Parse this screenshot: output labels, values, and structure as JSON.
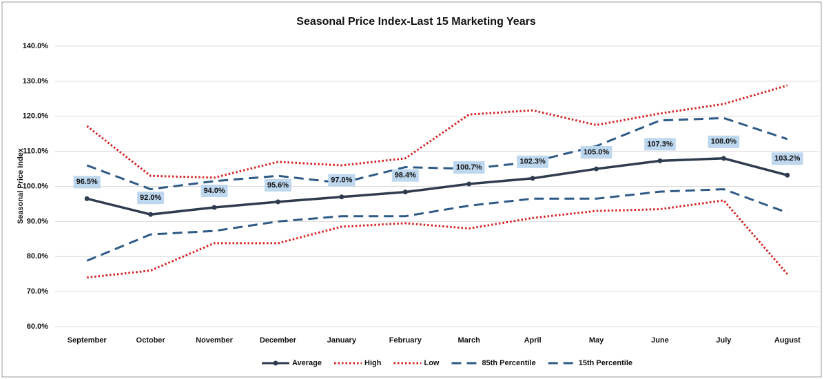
{
  "chart_data": {
    "type": "line",
    "title": "Seasonal Price Index-Last 15 Marketing Years",
    "y_label": "Seasonal Price Index",
    "categories": [
      "September",
      "October",
      "November",
      "December",
      "January",
      "February",
      "March",
      "April",
      "May",
      "June",
      "July",
      "August"
    ],
    "ylim": [
      60,
      140
    ],
    "yticks": [
      {
        "value": 60,
        "label": "60.0%"
      },
      {
        "value": 70,
        "label": "70.0%"
      },
      {
        "value": 80,
        "label": "80.0%"
      },
      {
        "value": 90,
        "label": "90.0%"
      },
      {
        "value": 100,
        "label": "100.0%"
      },
      {
        "value": 110,
        "label": "110.0%"
      },
      {
        "value": 120,
        "label": "120.0%"
      },
      {
        "value": 130,
        "label": "130.0%"
      },
      {
        "value": 140,
        "label": "140.0%"
      }
    ],
    "grid": true,
    "legend": "bottom",
    "series": [
      {
        "name": "Average",
        "color": "#2f3b4f",
        "style": "solid",
        "values": [
          96.5,
          92.0,
          94.0,
          95.6,
          97.0,
          98.4,
          100.7,
          102.3,
          105.0,
          107.3,
          108.0,
          103.2
        ],
        "value_labels": [
          "96.5%",
          "92.0%",
          "94.0%",
          "95.6%",
          "97.0%",
          "98.4%",
          "100.7%",
          "102.3%",
          "105.0%",
          "107.3%",
          "108.0%",
          "103.2%"
        ]
      },
      {
        "name": "High",
        "color": "#d42020",
        "style": "dotted",
        "values": [
          117.2,
          103,
          102.5,
          107,
          106,
          108,
          120.5,
          121.7,
          117.5,
          120.8,
          123.5,
          128.8
        ]
      },
      {
        "name": "Low",
        "color": "#d42020",
        "style": "dotted",
        "values": [
          74,
          76,
          83.8,
          83.8,
          88.5,
          89.5,
          88,
          91,
          93,
          93.5,
          96,
          75
        ]
      },
      {
        "name": "85th Percentile",
        "color": "#2e5a85",
        "style": "dashed",
        "values": [
          106,
          99.2,
          101.5,
          103,
          101,
          105.5,
          105,
          107,
          111.5,
          118.8,
          119.5,
          113.5
        ]
      },
      {
        "name": "15th Percentile",
        "color": "#2e5a85",
        "style": "dashed",
        "values": [
          78.8,
          86.3,
          87.3,
          90,
          91.5,
          91.5,
          94.5,
          96.5,
          96.5,
          98.5,
          99.2,
          92.5
        ]
      }
    ]
  }
}
